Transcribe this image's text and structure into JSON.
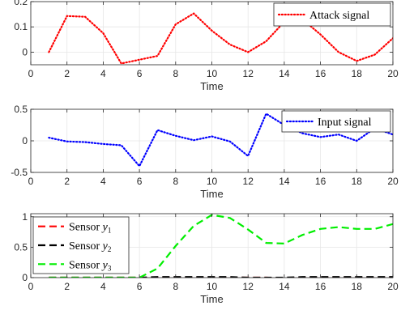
{
  "chart_data": [
    {
      "type": "line",
      "xlabel": "Time",
      "xlim": [
        0,
        20
      ],
      "ylim": [
        -0.05,
        0.2
      ],
      "xticks": [
        0,
        2,
        4,
        6,
        8,
        10,
        12,
        14,
        16,
        18,
        20
      ],
      "yticks": [
        0,
        0.1,
        0.2
      ],
      "ytick_labels": [
        "0",
        "0.1",
        "0.2"
      ],
      "grid": true,
      "legend_position": "top-right",
      "series": [
        {
          "name": "Attack signal",
          "color": "#ff0000",
          "style": "dotted",
          "x": [
            1,
            2,
            3,
            4,
            5,
            6,
            7,
            8,
            9,
            10,
            11,
            12,
            13,
            14,
            15,
            16,
            17,
            18,
            19,
            20
          ],
          "y": [
            0.0,
            0.143,
            0.14,
            0.075,
            -0.045,
            -0.03,
            -0.015,
            0.11,
            0.153,
            0.085,
            0.03,
            0.0,
            0.043,
            0.12,
            0.13,
            0.07,
            0.0,
            -0.035,
            -0.01,
            0.055
          ]
        }
      ]
    },
    {
      "type": "line",
      "xlabel": "Time",
      "xlim": [
        0,
        20
      ],
      "ylim": [
        -0.5,
        0.5
      ],
      "xticks": [
        0,
        2,
        4,
        6,
        8,
        10,
        12,
        14,
        16,
        18,
        20
      ],
      "yticks": [
        -0.5,
        0,
        0.5
      ],
      "ytick_labels": [
        "-0.5",
        "0",
        "0.5"
      ],
      "grid": true,
      "legend_position": "top-right",
      "series": [
        {
          "name": "Input signal",
          "color": "#0000ff",
          "style": "dotted",
          "x": [
            1,
            2,
            3,
            4,
            5,
            6,
            7,
            8,
            9,
            10,
            11,
            12,
            13,
            14,
            15,
            16,
            17,
            18,
            19,
            20
          ],
          "y": [
            0.05,
            -0.01,
            -0.02,
            -0.05,
            -0.07,
            -0.4,
            0.17,
            0.08,
            0.01,
            0.07,
            -0.01,
            -0.24,
            0.43,
            0.25,
            0.12,
            0.06,
            0.1,
            0.0,
            0.2,
            0.1
          ]
        }
      ]
    },
    {
      "type": "line",
      "xlabel": "Time",
      "xlim": [
        0,
        20
      ],
      "ylim": [
        0,
        1.05
      ],
      "xticks": [
        0,
        2,
        4,
        6,
        8,
        10,
        12,
        14,
        16,
        18,
        20
      ],
      "yticks": [
        0,
        0.5,
        1
      ],
      "ytick_labels": [
        "0",
        "0.5",
        "1"
      ],
      "grid": true,
      "legend_position": "top-left",
      "series": [
        {
          "name": "Sensor y1",
          "label_main": "Sensor ",
          "label_var": "y",
          "label_sub": "1",
          "color": "#ff0000",
          "style": "dashed",
          "x": [
            1,
            2,
            3,
            4,
            5,
            6,
            7,
            8,
            9,
            10,
            11,
            12,
            13,
            14,
            15,
            16,
            17,
            18,
            19,
            20
          ],
          "y": [
            0.0,
            0.0,
            0.0,
            0.0,
            0.0,
            0.0,
            0.0,
            0.0,
            0.0,
            0.0,
            0.0,
            0.0,
            0.0,
            -0.01,
            0.0,
            0.0,
            0.0,
            0.0,
            0.0,
            0.0
          ]
        },
        {
          "name": "Sensor y2",
          "label_main": "Sensor ",
          "label_var": "y",
          "label_sub": "2",
          "color": "#000000",
          "style": "dashed",
          "x": [
            1,
            2,
            3,
            4,
            5,
            6,
            7,
            8,
            9,
            10,
            11,
            12,
            13,
            14,
            15,
            16,
            17,
            18,
            19,
            20
          ],
          "y": [
            0.0,
            0.0,
            0.0,
            0.0,
            0.0,
            0.0,
            0.01,
            0.01,
            0.01,
            0.01,
            0.01,
            0.0,
            0.0,
            0.0,
            0.01,
            0.01,
            0.01,
            0.01,
            0.01,
            0.01
          ]
        },
        {
          "name": "Sensor y3",
          "label_main": "Sensor ",
          "label_var": "y",
          "label_sub": "3",
          "color": "#00ee00",
          "style": "dashed",
          "x": [
            1,
            2,
            3,
            4,
            5,
            6,
            7,
            8,
            9,
            10,
            11,
            12,
            13,
            14,
            15,
            16,
            17,
            18,
            19,
            20
          ],
          "y": [
            0.0,
            0.0,
            0.0,
            0.0,
            0.0,
            0.0,
            0.15,
            0.52,
            0.85,
            1.03,
            0.98,
            0.79,
            0.57,
            0.56,
            0.7,
            0.8,
            0.83,
            0.8,
            0.8,
            0.88
          ]
        }
      ]
    }
  ]
}
